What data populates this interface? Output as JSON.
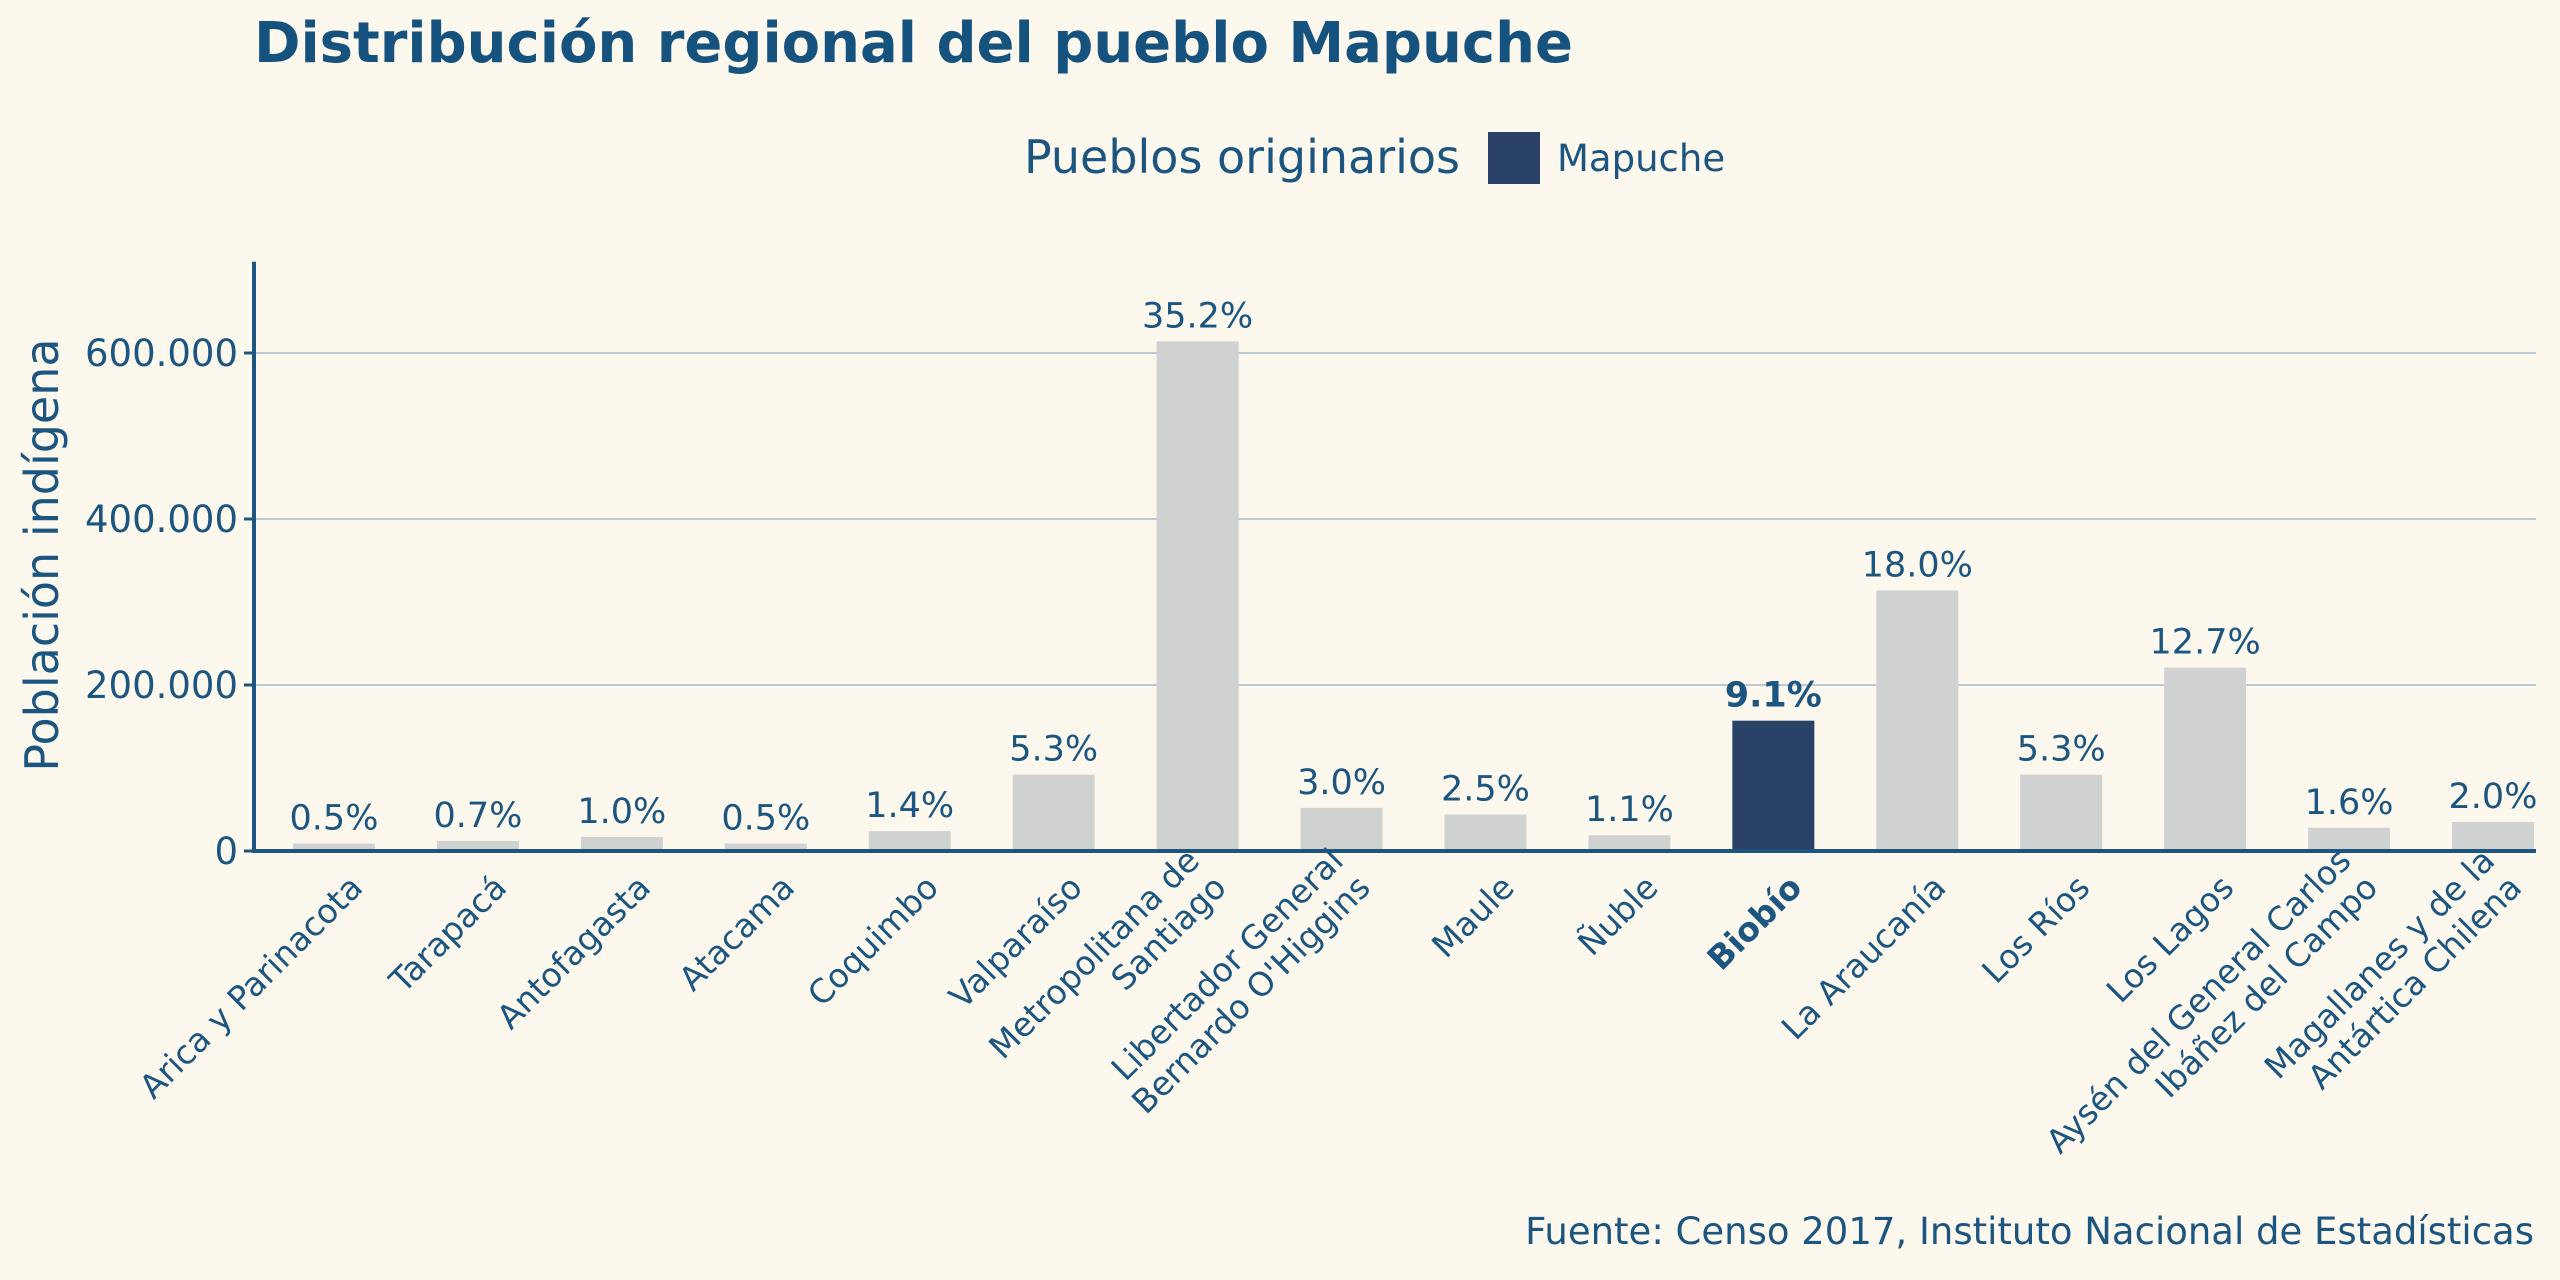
{
  "chart_data": {
    "type": "bar",
    "title": "Distribución regional del pueblo Mapuche",
    "legend": {
      "title": "Pueblos originarios",
      "entries": [
        {
          "name": "Mapuche",
          "color": "#2b4268"
        }
      ],
      "placement": "top-center"
    },
    "ylabel": "Población indígena",
    "xlabel": "",
    "ylim": [
      0,
      710000
    ],
    "yticks": [
      0,
      200000,
      400000,
      600000
    ],
    "ytick_labels": [
      "0",
      "200.000",
      "400.000",
      "600.000"
    ],
    "grid": true,
    "categories": [
      "Arica y Parinacota",
      "Tarapacá",
      "Antofagasta",
      "Atacama",
      "Coquimbo",
      "Valparaíso",
      "Metropolitana de Santiago",
      "Libertador General Bernardo O'Higgins",
      "Maule",
      "Ñuble",
      "Biobío",
      "La Araucanía",
      "Los Ríos",
      "Los Lagos",
      "Aysén del General Carlos Ibáñez del Campo",
      "Magallanes y de la Antártica Chilena"
    ],
    "category_label_lines": [
      [
        "Arica y Parinacota"
      ],
      [
        "Tarapacá"
      ],
      [
        "Antofagasta"
      ],
      [
        "Atacama"
      ],
      [
        "Coquimbo"
      ],
      [
        "Valparaíso"
      ],
      [
        "Metropolitana de",
        "Santiago"
      ],
      [
        "Libertador General",
        "Bernardo O'Higgins"
      ],
      [
        "Maule"
      ],
      [
        "Ñuble"
      ],
      [
        "Biobío"
      ],
      [
        "La Araucanía"
      ],
      [
        "Los Ríos"
      ],
      [
        "Los Lagos"
      ],
      [
        "Aysén del General Carlos",
        "Ibáñez del Campo"
      ],
      [
        "Magallanes y de la",
        "Antártica Chilena"
      ]
    ],
    "values": [
      9000,
      12000,
      17000,
      9000,
      24000,
      92000,
      614000,
      52000,
      44000,
      19000,
      157000,
      314000,
      92000,
      221000,
      28000,
      35000
    ],
    "percent_labels": [
      "0.5%",
      "0.7%",
      "1.0%",
      "0.5%",
      "1.4%",
      "5.3%",
      "35.2%",
      "3.0%",
      "2.5%",
      "1.1%",
      "9.1%",
      "18.0%",
      "5.3%",
      "12.7%",
      "1.6%",
      "2.0%"
    ],
    "highlight_category": "Biobío",
    "colors": {
      "highlight": "#2b4268",
      "default": "#d0d2d2",
      "grid": "#b9cad6",
      "axis": "#1b5580",
      "text": "#1b5580",
      "background": "#fcf8ee"
    }
  },
  "source": "Fuente: Censo 2017, Instituto Nacional de Estadísticas"
}
